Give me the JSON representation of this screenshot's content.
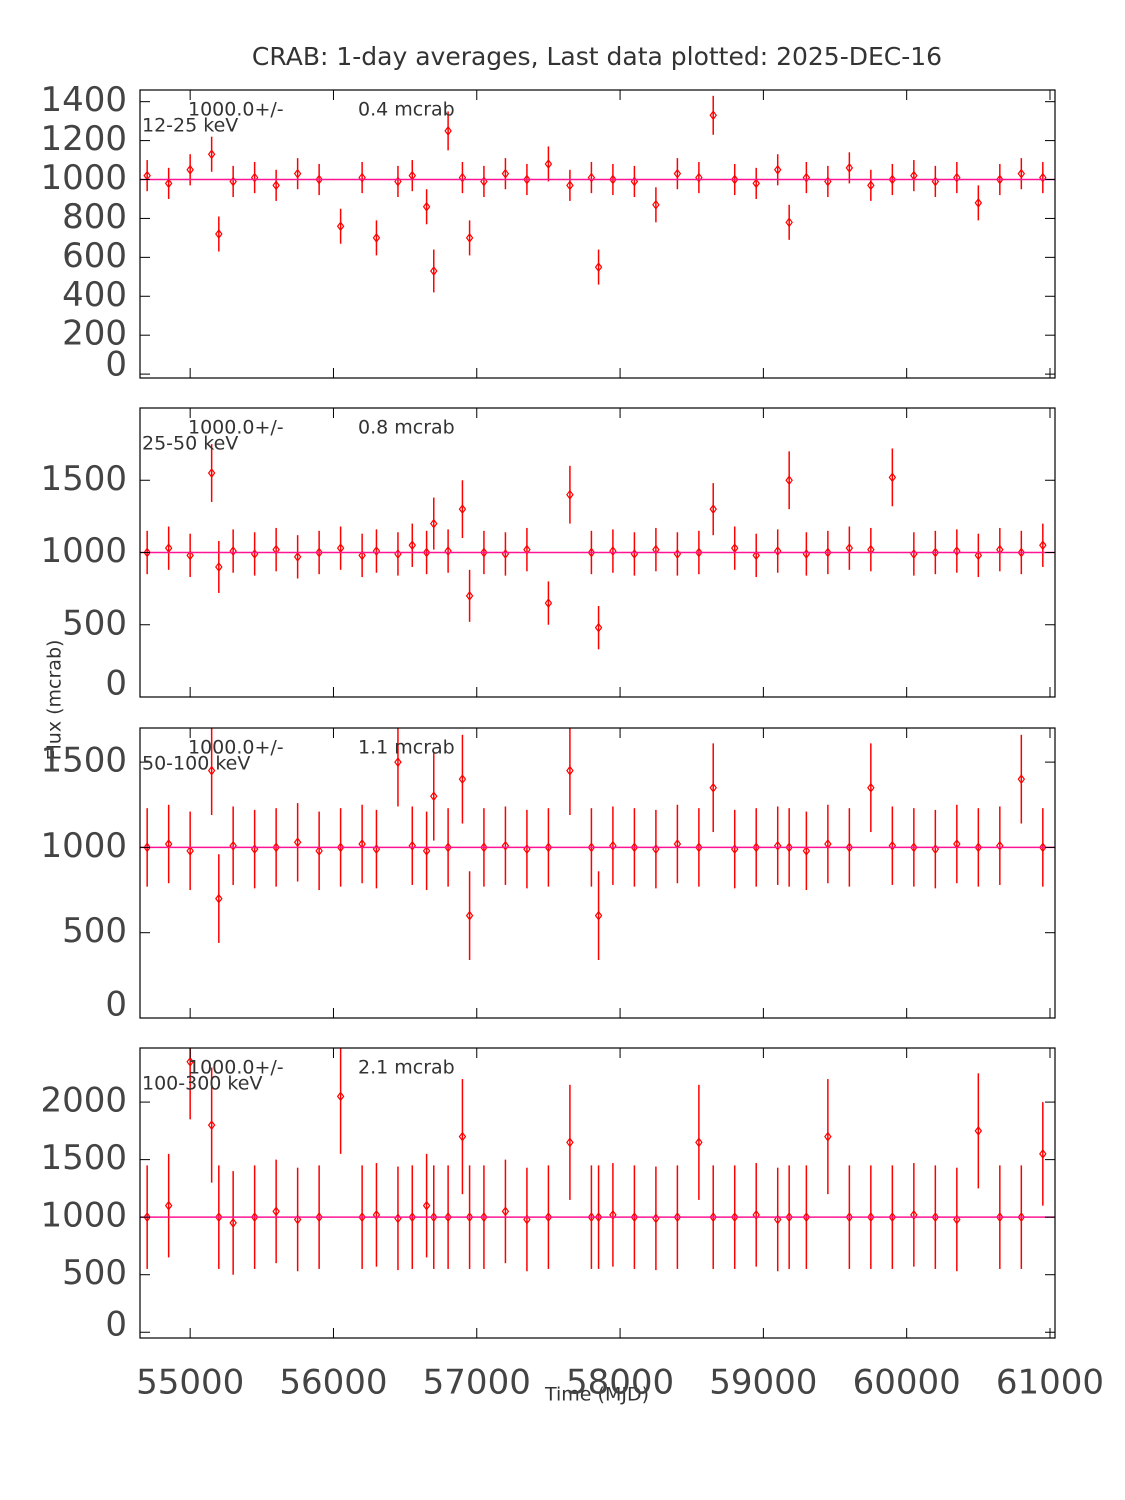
{
  "chart_data": [
    {
      "type": "errorbar",
      "title": "CRAB:  1-day averages,  Last data plotted: 2025-DEC-16",
      "band": "12-25 keV",
      "mean": {
        "value": 1000,
        "label": "1000.0+/-"
      },
      "mean_error": "0.4 mcrab",
      "mean_color": "#ff1493",
      "color": "#ff0000",
      "xlim": [
        54650,
        61035
      ],
      "xticks": [
        55000,
        56000,
        57000,
        58000,
        59000,
        60000,
        61000
      ],
      "ylim": [
        -20,
        1460
      ],
      "yticks": [
        0,
        200,
        400,
        600,
        800,
        1000,
        1200,
        1400
      ],
      "x": [
        54700,
        54850,
        55000,
        55150,
        55200,
        55300,
        55450,
        55600,
        55750,
        55900,
        56050,
        56200,
        56300,
        56450,
        56550,
        56650,
        56700,
        56800,
        56900,
        56950,
        57050,
        57200,
        57350,
        57500,
        57650,
        57800,
        57850,
        57950,
        58100,
        58250,
        58400,
        58550,
        58650,
        58800,
        58950,
        59100,
        59180,
        59300,
        59450,
        59600,
        59750,
        59900,
        60050,
        60200,
        60350,
        60500,
        60650,
        60800,
        60950
      ],
      "values": [
        1020,
        980,
        1050,
        1130,
        720,
        990,
        1010,
        970,
        1030,
        1000,
        760,
        1010,
        700,
        990,
        1020,
        860,
        530,
        1250,
        1010,
        700,
        990,
        1030,
        1000,
        1080,
        970,
        1010,
        550,
        1000,
        990,
        870,
        1030,
        1010,
        1330,
        1000,
        980,
        1050,
        780,
        1010,
        990,
        1060,
        970,
        1000,
        1020,
        990,
        1010,
        880,
        1000,
        1030,
        1010
      ],
      "errors": [
        80,
        80,
        80,
        90,
        90,
        80,
        80,
        80,
        80,
        80,
        90,
        80,
        90,
        80,
        80,
        90,
        110,
        100,
        80,
        90,
        80,
        80,
        80,
        90,
        80,
        80,
        90,
        80,
        80,
        90,
        80,
        80,
        100,
        80,
        80,
        80,
        90,
        80,
        80,
        80,
        80,
        80,
        80,
        80,
        80,
        90,
        80,
        80,
        80
      ]
    },
    {
      "type": "errorbar",
      "band": "25-50 keV",
      "mean": {
        "value": 1000,
        "label": "1000.0+/-"
      },
      "mean_error": "0.8 mcrab",
      "mean_color": "#ff1493",
      "color": "#ff0000",
      "xlim": [
        54650,
        61035
      ],
      "xticks": [
        55000,
        56000,
        57000,
        58000,
        59000,
        60000,
        61000
      ],
      "ylim": [
        0,
        2000
      ],
      "yticks": [
        0,
        500,
        1000,
        1500
      ],
      "x": [
        54700,
        54850,
        55000,
        55150,
        55200,
        55300,
        55450,
        55600,
        55750,
        55900,
        56050,
        56200,
        56300,
        56450,
        56550,
        56650,
        56700,
        56800,
        56900,
        56950,
        57050,
        57200,
        57350,
        57500,
        57650,
        57800,
        57850,
        57950,
        58100,
        58250,
        58400,
        58550,
        58650,
        58800,
        58950,
        59100,
        59180,
        59300,
        59450,
        59600,
        59750,
        59900,
        60050,
        60200,
        60350,
        60500,
        60650,
        60800,
        60950
      ],
      "values": [
        1000,
        1030,
        980,
        1550,
        900,
        1010,
        990,
        1020,
        970,
        1000,
        1030,
        980,
        1010,
        990,
        1050,
        1000,
        1200,
        1010,
        1300,
        700,
        1000,
        990,
        1020,
        650,
        1400,
        1000,
        480,
        1010,
        990,
        1020,
        990,
        1000,
        1300,
        1030,
        980,
        1010,
        1500,
        990,
        1000,
        1030,
        1020,
        1520,
        990,
        1000,
        1010,
        980,
        1020,
        1000,
        1050
      ],
      "errors": [
        150,
        150,
        150,
        200,
        180,
        150,
        150,
        150,
        150,
        150,
        150,
        150,
        150,
        150,
        150,
        150,
        180,
        150,
        200,
        180,
        150,
        150,
        150,
        150,
        200,
        150,
        150,
        150,
        150,
        150,
        150,
        150,
        180,
        150,
        150,
        150,
        200,
        150,
        150,
        150,
        150,
        200,
        150,
        150,
        150,
        150,
        150,
        150,
        150
      ]
    },
    {
      "type": "errorbar",
      "band": "50-100 keV",
      "ylabel": "Flux (mcrab)",
      "mean": {
        "value": 1000,
        "label": "1000.0+/-"
      },
      "mean_error": "1.1 mcrab",
      "mean_color": "#ff1493",
      "color": "#ff0000",
      "xlim": [
        54650,
        61035
      ],
      "xticks": [
        55000,
        56000,
        57000,
        58000,
        59000,
        60000,
        61000
      ],
      "ylim": [
        0,
        1700
      ],
      "yticks": [
        0,
        500,
        1000,
        1500
      ],
      "x": [
        54700,
        54850,
        55000,
        55150,
        55200,
        55300,
        55450,
        55600,
        55750,
        55900,
        56050,
        56200,
        56300,
        56450,
        56550,
        56650,
        56700,
        56800,
        56900,
        56950,
        57050,
        57200,
        57350,
        57500,
        57650,
        57800,
        57850,
        57950,
        58100,
        58250,
        58400,
        58550,
        58650,
        58800,
        58950,
        59100,
        59180,
        59300,
        59450,
        59600,
        59750,
        59900,
        60050,
        60200,
        60350,
        60500,
        60650,
        60800,
        60950
      ],
      "values": [
        1000,
        1020,
        980,
        1450,
        700,
        1010,
        990,
        1000,
        1030,
        980,
        1000,
        1020,
        990,
        1500,
        1010,
        980,
        1300,
        1000,
        1400,
        600,
        1000,
        1010,
        990,
        1000,
        1450,
        1000,
        600,
        1010,
        1000,
        990,
        1020,
        1000,
        1350,
        990,
        1000,
        1010,
        1000,
        980,
        1020,
        1000,
        1350,
        1010,
        1000,
        990,
        1020,
        1000,
        1010,
        1400,
        1000
      ],
      "errors": [
        230,
        230,
        230,
        260,
        260,
        230,
        230,
        230,
        230,
        230,
        230,
        230,
        230,
        260,
        230,
        230,
        260,
        230,
        260,
        260,
        230,
        230,
        230,
        230,
        260,
        230,
        260,
        230,
        230,
        230,
        230,
        230,
        260,
        230,
        230,
        230,
        230,
        230,
        230,
        230,
        260,
        230,
        230,
        230,
        230,
        230,
        230,
        260,
        230
      ]
    },
    {
      "type": "errorbar",
      "band": "100-300 keV",
      "xlabel": "Time (MJD)",
      "mean": {
        "value": 1000,
        "label": "1000.0+/-"
      },
      "mean_error": "2.1 mcrab",
      "mean_color": "#ff1493",
      "color": "#ff0000",
      "xlim": [
        54650,
        61035
      ],
      "xticks": [
        55000,
        56000,
        57000,
        58000,
        59000,
        60000,
        61000
      ],
      "ylim": [
        -50,
        2470
      ],
      "yticks": [
        0,
        500,
        1000,
        1500,
        2000
      ],
      "x": [
        54700,
        54850,
        55000,
        55150,
        55200,
        55300,
        55450,
        55600,
        55750,
        55900,
        56050,
        56200,
        56300,
        56450,
        56550,
        56650,
        56700,
        56800,
        56900,
        56950,
        57050,
        57200,
        57350,
        57500,
        57650,
        57800,
        57850,
        57950,
        58100,
        58250,
        58400,
        58550,
        58650,
        58800,
        58950,
        59100,
        59180,
        59300,
        59450,
        59600,
        59750,
        59900,
        60050,
        60200,
        60350,
        60500,
        60650,
        60800,
        60950
      ],
      "values": [
        1000,
        1100,
        2350,
        1800,
        1000,
        950,
        1000,
        1050,
        980,
        1000,
        2050,
        1000,
        1020,
        990,
        1000,
        1100,
        1000,
        1000,
        1700,
        1000,
        1000,
        1050,
        980,
        1000,
        1650,
        1000,
        1000,
        1020,
        1000,
        990,
        1000,
        1650,
        1000,
        1000,
        1020,
        980,
        1000,
        1000,
        1700,
        1000,
        1000,
        1000,
        1020,
        1000,
        980,
        1750,
        1000,
        1000,
        1550
      ],
      "errors": [
        450,
        450,
        500,
        500,
        450,
        450,
        450,
        450,
        450,
        450,
        500,
        450,
        450,
        450,
        450,
        450,
        450,
        450,
        500,
        450,
        450,
        450,
        450,
        450,
        500,
        450,
        450,
        450,
        450,
        450,
        450,
        500,
        450,
        450,
        450,
        450,
        450,
        450,
        500,
        450,
        450,
        450,
        450,
        450,
        450,
        500,
        450,
        450,
        450
      ]
    }
  ]
}
